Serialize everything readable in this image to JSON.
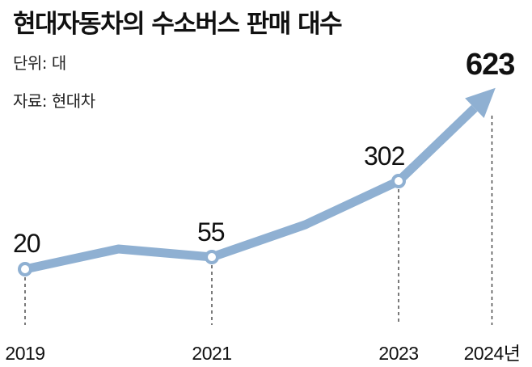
{
  "header": {
    "title": "현대자동차의 수소버스 판매 대수",
    "unit": "단위: 대",
    "source": "자료: 현대차"
  },
  "colors": {
    "line": "#8fb0d2",
    "marker_fill": "#ffffff",
    "text": "#111111"
  },
  "chart_data": {
    "type": "line",
    "title": "현대자동차의 수소버스 판매 대수",
    "x": [
      2019,
      2020,
      2021,
      2022,
      2023,
      2024
    ],
    "y": [
      20,
      35,
      55,
      150,
      302,
      623
    ],
    "x_tick_labels": [
      "2019",
      "2021",
      "2023",
      "2024년"
    ],
    "labeled_points": [
      {
        "x": 2019,
        "label": "20"
      },
      {
        "x": 2021,
        "label": "55"
      },
      {
        "x": 2023,
        "label": "302"
      },
      {
        "x": 2024,
        "label": "623"
      }
    ],
    "markers_at": [
      2019,
      2021,
      2023
    ],
    "arrow_end": true,
    "grid": false,
    "legend": "none"
  }
}
